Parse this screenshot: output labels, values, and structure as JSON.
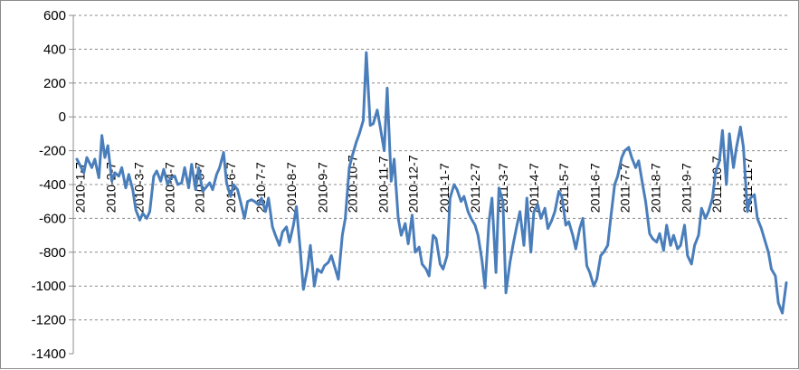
{
  "chart_data": {
    "type": "line",
    "title": "",
    "xlabel": "",
    "ylabel": "",
    "ylim": [
      -1400,
      600
    ],
    "y_ticks": [
      600,
      400,
      200,
      0,
      -200,
      -400,
      -600,
      -800,
      -1000,
      -1200,
      -1400
    ],
    "grid": "horizontal dashed",
    "x_tick_labels": [
      "2010-1-7",
      "2010-2-7",
      "2010-3-7",
      "2010-4-7",
      "2010-5-7",
      "2010-6-7",
      "2010-7-7",
      "2010-8-7",
      "2010-9-7",
      "2010-10-7",
      "2010-11-7",
      "2010-12-7",
      "2011-1-7",
      "2011-2-7",
      "2011-3-7",
      "2011-4-7",
      "2011-5-7",
      "2011-6-7",
      "2011-7-7",
      "2011-8-7",
      "2011-9-7",
      "2011-10-7",
      "2011-11-7"
    ],
    "x_range": [
      "2010-1-4",
      "2011-12-16"
    ],
    "series": [
      {
        "color": "#4a7ebb",
        "x": [
          "2010-1-4",
          "2010-1-11",
          "2010-1-14",
          "2010-1-19",
          "2010-1-22",
          "2010-1-26",
          "2010-1-29",
          "2010-2-1",
          "2010-2-4",
          "2010-2-8",
          "2010-2-11",
          "2010-2-15",
          "2010-2-18",
          "2010-2-22",
          "2010-2-25",
          "2010-3-1",
          "2010-3-4",
          "2010-3-8",
          "2010-3-11",
          "2010-3-15",
          "2010-3-18",
          "2010-3-22",
          "2010-3-25",
          "2010-3-29",
          "2010-4-1",
          "2010-4-5",
          "2010-4-8",
          "2010-4-12",
          "2010-4-15",
          "2010-4-19",
          "2010-4-22",
          "2010-4-26",
          "2010-4-29",
          "2010-5-3",
          "2010-5-6",
          "2010-5-10",
          "2010-5-13",
          "2010-5-17",
          "2010-5-20",
          "2010-5-24",
          "2010-5-27",
          "2010-5-31",
          "2010-6-3",
          "2010-6-7",
          "2010-6-10",
          "2010-6-14",
          "2010-6-17",
          "2010-6-21",
          "2010-6-24",
          "2010-6-28",
          "2010-7-1",
          "2010-7-5",
          "2010-7-8",
          "2010-7-12",
          "2010-7-15",
          "2010-7-19",
          "2010-7-22",
          "2010-7-26",
          "2010-7-29",
          "2010-8-2",
          "2010-8-5",
          "2010-8-9",
          "2010-8-12",
          "2010-8-16",
          "2010-8-19",
          "2010-8-23",
          "2010-8-26",
          "2010-8-30",
          "2010-9-2",
          "2010-9-6",
          "2010-9-9",
          "2010-9-13",
          "2010-9-16",
          "2010-9-20",
          "2010-9-23",
          "2010-9-27",
          "2010-9-30",
          "2010-10-4",
          "2010-10-7",
          "2010-10-11",
          "2010-10-14",
          "2010-10-18",
          "2010-10-21",
          "2010-10-25",
          "2010-10-28",
          "2010-11-1",
          "2010-11-4",
          "2010-11-8",
          "2010-11-11",
          "2010-11-15",
          "2010-11-18",
          "2010-11-22",
          "2010-11-25",
          "2010-11-29",
          "2010-12-2",
          "2010-12-6",
          "2010-12-9",
          "2010-12-13",
          "2010-12-16",
          "2010-12-20",
          "2010-12-23",
          "2010-12-27",
          "2010-12-30",
          "2011-1-3",
          "2011-1-6",
          "2011-1-10",
          "2011-1-13",
          "2011-1-17",
          "2011-1-20",
          "2011-1-24",
          "2011-1-27",
          "2011-1-31",
          "2011-2-3",
          "2011-2-7",
          "2011-2-10",
          "2011-2-14",
          "2011-2-17",
          "2011-2-21",
          "2011-2-24",
          "2011-2-28",
          "2011-3-3",
          "2011-3-7",
          "2011-3-10",
          "2011-3-14",
          "2011-3-17",
          "2011-3-21",
          "2011-3-24",
          "2011-3-28",
          "2011-3-31",
          "2011-4-4",
          "2011-4-7",
          "2011-4-11",
          "2011-4-14",
          "2011-4-18",
          "2011-4-21",
          "2011-4-25",
          "2011-4-28",
          "2011-5-2",
          "2011-5-5",
          "2011-5-9",
          "2011-5-12",
          "2011-5-16",
          "2011-5-19",
          "2011-5-23",
          "2011-5-26",
          "2011-5-30",
          "2011-6-2",
          "2011-6-6",
          "2011-6-9",
          "2011-6-13",
          "2011-6-16",
          "2011-6-20",
          "2011-6-23",
          "2011-6-27",
          "2011-6-30",
          "2011-7-4",
          "2011-7-7",
          "2011-7-11",
          "2011-7-14",
          "2011-7-18",
          "2011-7-21",
          "2011-7-25",
          "2011-7-28",
          "2011-8-1",
          "2011-8-4",
          "2011-8-8",
          "2011-8-11",
          "2011-8-15",
          "2011-8-18",
          "2011-8-22",
          "2011-8-25",
          "2011-8-29",
          "2011-9-1",
          "2011-9-5",
          "2011-9-8",
          "2011-9-12",
          "2011-9-15",
          "2011-9-19",
          "2011-9-22",
          "2011-9-26",
          "2011-9-29",
          "2011-10-3",
          "2011-10-6",
          "2011-10-10",
          "2011-10-13",
          "2011-10-17",
          "2011-10-20",
          "2011-10-24",
          "2011-10-27",
          "2011-10-31",
          "2011-11-3",
          "2011-11-7",
          "2011-11-10",
          "2011-11-14",
          "2011-11-17",
          "2011-11-21",
          "2011-11-24",
          "2011-11-28",
          "2011-12-1",
          "2011-12-5",
          "2011-12-8",
          "2011-12-12",
          "2011-12-16"
        ],
        "values": [
          -250,
          -330,
          -240,
          -300,
          -250,
          -360,
          -110,
          -240,
          -170,
          -380,
          -330,
          -350,
          -300,
          -420,
          -340,
          -430,
          -550,
          -610,
          -570,
          -600,
          -560,
          -350,
          -320,
          -380,
          -310,
          -400,
          -360,
          -350,
          -400,
          -390,
          -300,
          -420,
          -280,
          -430,
          -300,
          -440,
          -420,
          -390,
          -430,
          -340,
          -300,
          -210,
          -390,
          -470,
          -400,
          -430,
          -500,
          -600,
          -500,
          -490,
          -500,
          -520,
          -480,
          -560,
          -480,
          -650,
          -700,
          -760,
          -680,
          -650,
          -740,
          -640,
          -530,
          -800,
          -1020,
          -900,
          -760,
          -1000,
          -900,
          -920,
          -880,
          -860,
          -820,
          -900,
          -960,
          -700,
          -600,
          -300,
          -230,
          -150,
          -100,
          -20,
          380,
          -50,
          -40,
          40,
          -60,
          -200,
          170,
          -380,
          -250,
          -600,
          -700,
          -630,
          -750,
          -580,
          -800,
          -770,
          -870,
          -900,
          -940,
          -700,
          -720,
          -870,
          -900,
          -820,
          -480,
          -400,
          -430,
          -500,
          -470,
          -560,
          -600,
          -640,
          -700,
          -850,
          -1010,
          -620,
          -480,
          -920,
          -420,
          -500,
          -1040,
          -860,
          -760,
          -640,
          -560,
          -760,
          -480,
          -800,
          -560,
          -520,
          -600,
          -540,
          -660,
          -610,
          -560,
          -440,
          -470,
          -640,
          -620,
          -700,
          -780,
          -660,
          -600,
          -880,
          -920,
          -1000,
          -960,
          -820,
          -800,
          -760,
          -600,
          -400,
          -350,
          -240,
          -200,
          -180,
          -240,
          -300,
          -260,
          -400,
          -500,
          -690,
          -720,
          -740,
          -690,
          -790,
          -640,
          -760,
          -700,
          -780,
          -760,
          -640,
          -820,
          -870,
          -760,
          -700,
          -540,
          -600,
          -560,
          -480,
          -330,
          -260,
          -80,
          -400,
          -100,
          -300,
          -180,
          -60,
          -180,
          -560,
          -480,
          -460,
          -600,
          -660,
          -720,
          -800,
          -900,
          -940,
          -1100,
          -1160,
          -980
        ]
      }
    ]
  }
}
